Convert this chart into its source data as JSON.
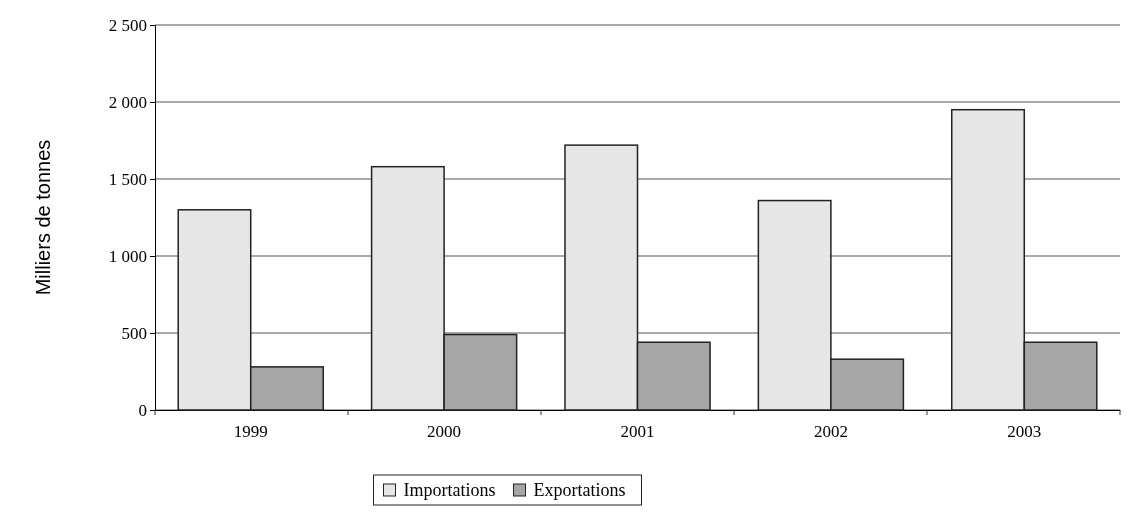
{
  "chart_data": {
    "type": "bar",
    "ylabel": "Milliers de tonnes",
    "categories": [
      "1999",
      "2000",
      "2001",
      "2002",
      "2003"
    ],
    "series": [
      {
        "name": "Importations",
        "color": "#e6e6e6",
        "values": [
          1300,
          1580,
          1720,
          1360,
          1950
        ]
      },
      {
        "name": "Exportations",
        "color": "#a6a6a6",
        "values": [
          280,
          490,
          440,
          330,
          440
        ]
      }
    ],
    "ylim": [
      0,
      2500
    ],
    "yticks": [
      0,
      500,
      {
        "value": 1000,
        "label": "1 000"
      },
      {
        "value": 1500,
        "label": "1 500"
      },
      {
        "value": 2000,
        "label": "2 000"
      },
      {
        "value": 2500,
        "label": "2 500"
      }
    ],
    "grid": "y",
    "legend": "bottom"
  }
}
